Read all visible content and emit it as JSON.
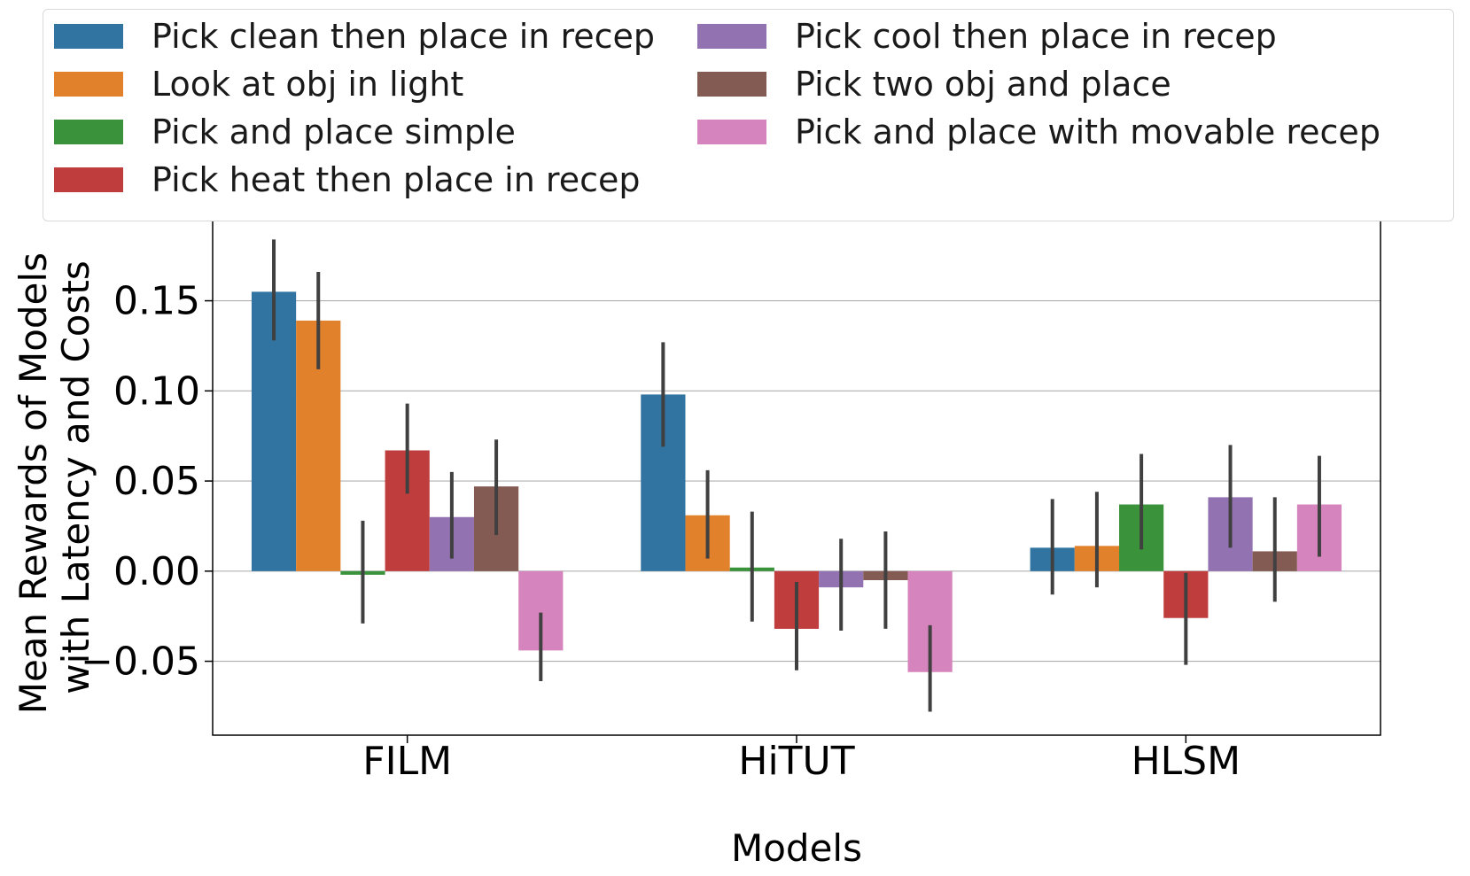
{
  "chart_data": {
    "type": "bar",
    "categories": [
      "FILM",
      "HiTUT",
      "HLSM"
    ],
    "xlabel": "Models",
    "ylabel": [
      "Mean Rewards of Models",
      "with Latency and Costs"
    ],
    "ylim": [
      -0.091,
      0.195
    ],
    "yticks": [
      -0.05,
      0.0,
      0.05,
      0.1,
      0.15
    ],
    "ytick_labels": [
      "−0.05",
      "0.00",
      "0.05",
      "0.10",
      "0.15"
    ],
    "grid": "horizontal",
    "legend_position": "top",
    "series": [
      {
        "name": "Pick clean then place in recep",
        "color": "#3274a1",
        "values": [
          0.155,
          0.098,
          0.013
        ],
        "err_low": [
          0.128,
          0.069,
          -0.013
        ],
        "err_high": [
          0.184,
          0.127,
          0.04
        ]
      },
      {
        "name": "Look at obj in light",
        "color": "#e1812c",
        "values": [
          0.139,
          0.031,
          0.014
        ],
        "err_low": [
          0.112,
          0.007,
          -0.009
        ],
        "err_high": [
          0.166,
          0.056,
          0.044
        ]
      },
      {
        "name": "Pick and place simple",
        "color": "#3a923a",
        "values": [
          -0.002,
          0.002,
          0.037
        ],
        "err_low": [
          -0.029,
          -0.028,
          0.012
        ],
        "err_high": [
          0.028,
          0.033,
          0.065
        ]
      },
      {
        "name": "Pick heat then place in recep",
        "color": "#c03d3e",
        "values": [
          0.067,
          -0.032,
          -0.026
        ],
        "err_low": [
          0.043,
          -0.055,
          -0.052
        ],
        "err_high": [
          0.093,
          -0.006,
          -0.001
        ]
      },
      {
        "name": "Pick cool then place in recep",
        "color": "#9372b2",
        "values": [
          0.03,
          -0.009,
          0.041
        ],
        "err_low": [
          0.007,
          -0.033,
          0.013
        ],
        "err_high": [
          0.055,
          0.018,
          0.07
        ]
      },
      {
        "name": "Pick two obj and place",
        "color": "#845b53",
        "values": [
          0.047,
          -0.005,
          0.011
        ],
        "err_low": [
          0.02,
          -0.032,
          -0.017
        ],
        "err_high": [
          0.073,
          0.022,
          0.041
        ]
      },
      {
        "name": "Pick and place with movable recep",
        "color": "#d684bd",
        "values": [
          -0.044,
          -0.056,
          0.037
        ],
        "err_low": [
          -0.061,
          -0.078,
          0.008
        ],
        "err_high": [
          -0.023,
          -0.03,
          0.064
        ]
      }
    ]
  }
}
